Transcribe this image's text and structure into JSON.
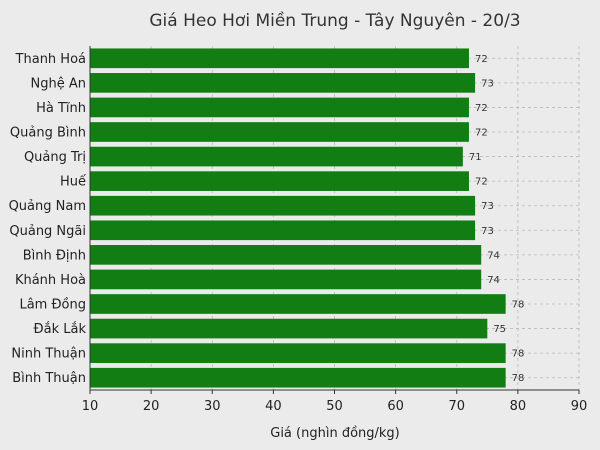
{
  "chart_data": {
    "type": "bar",
    "orientation": "horizontal",
    "title": "Giá Heo Hơi Miền Trung - Tây Nguyên - 20/3",
    "xlabel": "Giá (nghìn đồng/kg)",
    "ylabel": "",
    "categories": [
      "Thanh Hoá",
      "Nghệ An",
      "Hà Tĩnh",
      "Quảng Bình",
      "Quảng Trị",
      "Huế",
      "Quảng Nam",
      "Quảng Ngãi",
      "Bình Định",
      "Khánh Hoà",
      "Lâm Đồng",
      "Đắk Lắk",
      "Ninh Thuận",
      "Bình Thuận"
    ],
    "values": [
      72,
      73,
      72,
      72,
      71,
      72,
      73,
      73,
      74,
      74,
      78,
      75,
      78,
      78
    ],
    "xlim": [
      10,
      90
    ],
    "xticks": [
      10,
      20,
      30,
      40,
      50,
      60,
      70,
      80,
      90
    ],
    "grid": true,
    "bar_color": "#127d12",
    "data_labels": true
  }
}
